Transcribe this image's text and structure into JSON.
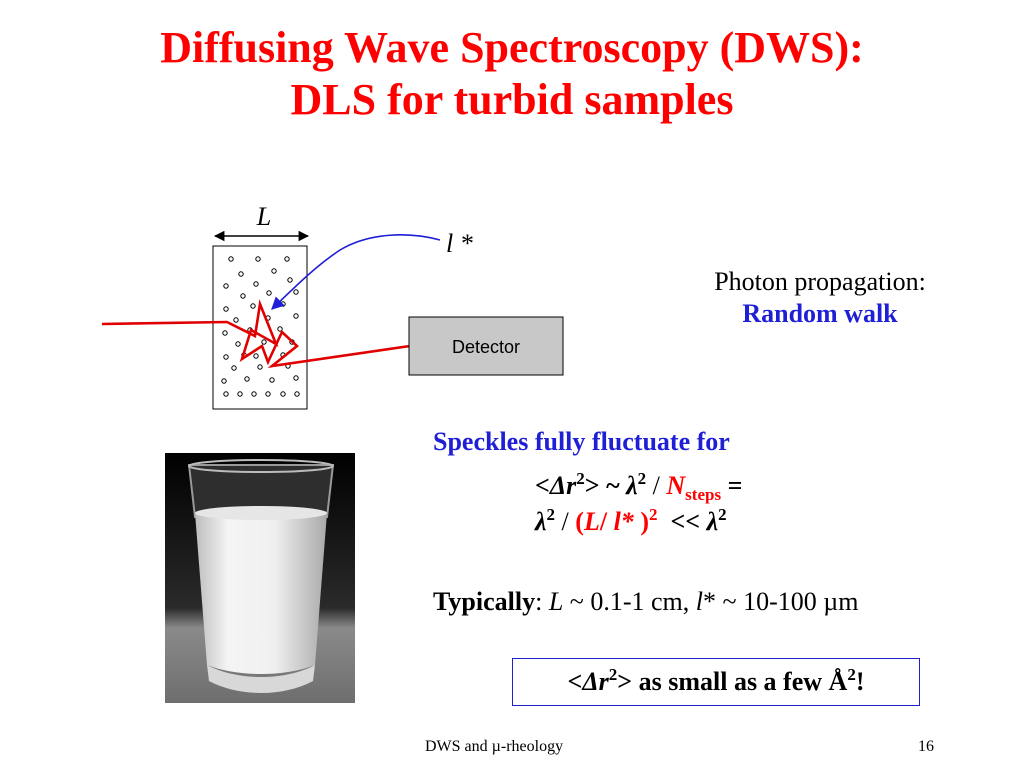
{
  "slide": {
    "title_line1": "Diffusing Wave Spectroscopy (DWS):",
    "title_line2": "DLS for turbid samples"
  },
  "diagram": {
    "length_label": "L",
    "mean_free_path_label": "l *",
    "detector_label": "Detector"
  },
  "photon": {
    "heading": "Photon propagation:",
    "model": "Random walk"
  },
  "speckles": {
    "heading": "Speckles fully fluctuate for",
    "line1": {
      "lt": "<",
      "delta": "Δ",
      "r": "r",
      "exp": "2",
      "mid": "> ~ ",
      "lambda": "λ",
      "lambda_exp": "2",
      "slash": " / ",
      "n": "N",
      "n_sub": "steps",
      "eq": " ="
    },
    "line2": {
      "lambda": "λ",
      "lambda_exp": "2",
      "slash": " / ",
      "paren_open": "(",
      "L": "L",
      "sep": "/ ",
      "l": "l*",
      "paren_close": " )",
      "paren_exp": "2",
      "ll": "  << ",
      "lambda2": "λ",
      "lambda2_exp": "2"
    }
  },
  "typical": {
    "label": "Typically",
    "colon": ": ",
    "L": "L",
    "L_val": " ~ 0.1-1 cm, ",
    "l": "l",
    "l_val": "* ~ 10-100 µm"
  },
  "highlight": {
    "lt": "<",
    "delta": "Δ",
    "r": "r",
    "exp": "2",
    "text": "> as small as a few Å",
    "exp2": "2",
    "end": "!"
  },
  "footer": {
    "center": "DWS and µ-rheology",
    "page_number": "16"
  },
  "colors": {
    "title": "#ff0000",
    "accent_blue": "#1f1fd6",
    "laser_red": "#e00000",
    "detector_fill": "#c8c8c8"
  }
}
